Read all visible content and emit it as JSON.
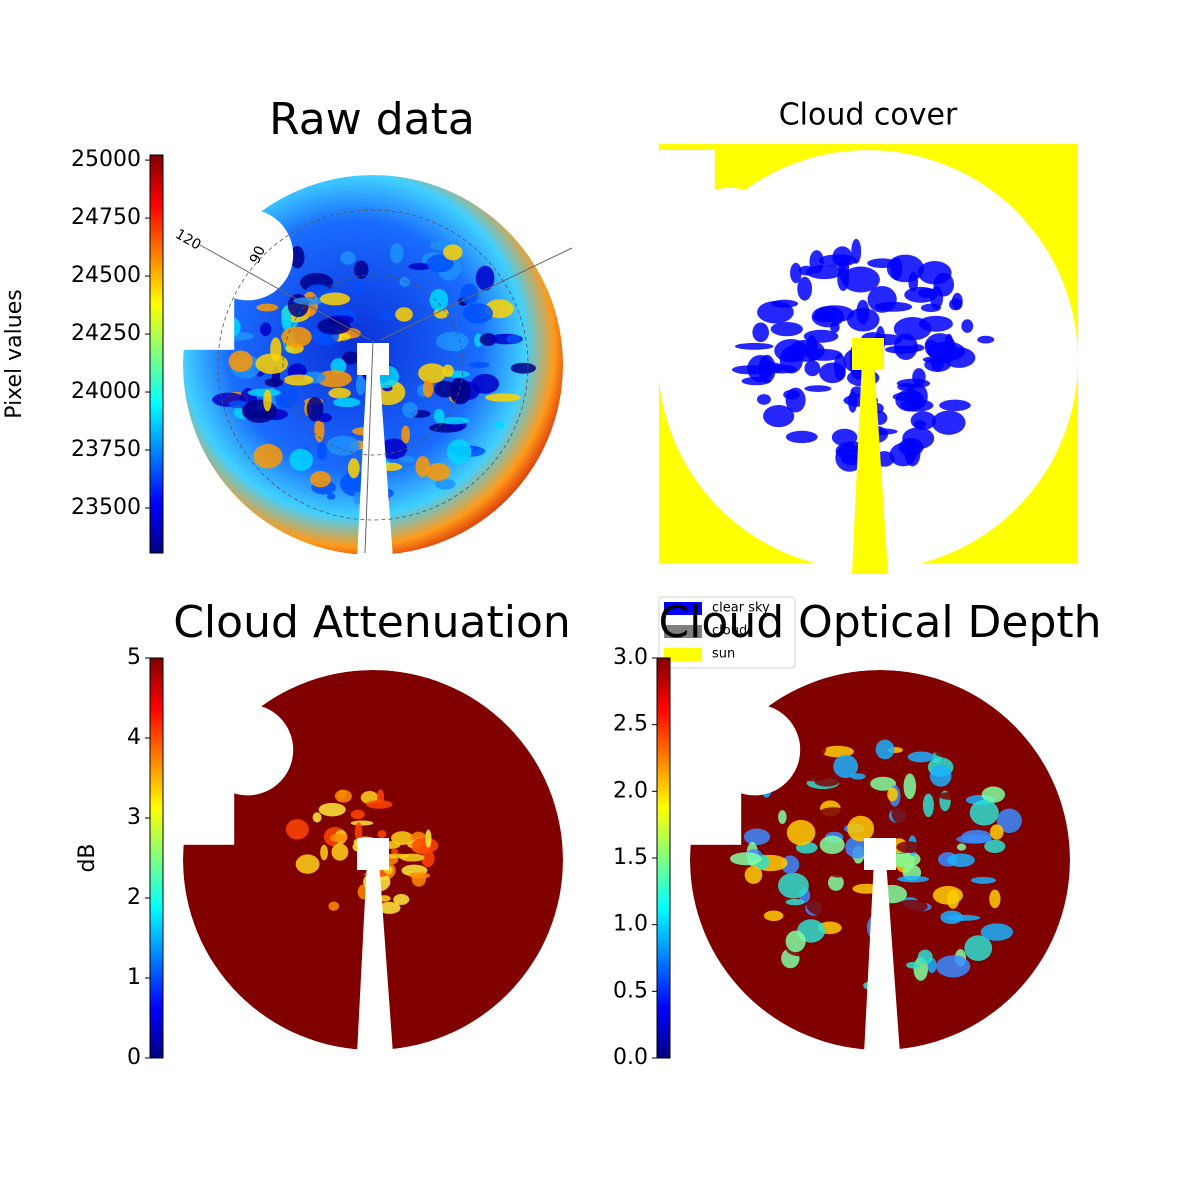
{
  "chart_data": [
    {
      "type": "image",
      "title": "Raw data",
      "colormap": "jet",
      "colorbar_label": "Pixel values",
      "clim": [
        23306,
        25022
      ],
      "cticks": [
        23500,
        23750,
        24000,
        24250,
        24500,
        24750,
        25000
      ],
      "annotations": [
        "120",
        "90"
      ]
    },
    {
      "type": "classes",
      "title": "Cloud cover",
      "series": [
        {
          "name": "clear sky",
          "color": "#0000ff"
        },
        {
          "name": "cloud",
          "color": "#808080"
        },
        {
          "name": "sun",
          "color": "#ffff00"
        }
      ],
      "legend": "lower left"
    },
    {
      "type": "image",
      "title": "Cloud Attenuation",
      "colormap": "jet",
      "colorbar_label": "dB",
      "clim": [
        0,
        5
      ],
      "cticks": [
        0,
        1,
        2,
        3,
        4,
        5
      ]
    },
    {
      "type": "image",
      "title": "Cloud Optical Depth",
      "colormap": "jet",
      "clim": [
        0,
        3
      ],
      "cticks": [
        {
          "value": 0,
          "label": "0.0"
        },
        {
          "value": 0.5,
          "label": "0.5"
        },
        {
          "value": 1,
          "label": "1.0"
        },
        {
          "value": 1.5,
          "label": "1.5"
        },
        {
          "value": 2,
          "label": "2.0"
        },
        {
          "value": 2.5,
          "label": "2.5"
        },
        {
          "value": 3,
          "label": "3.0"
        }
      ]
    }
  ]
}
